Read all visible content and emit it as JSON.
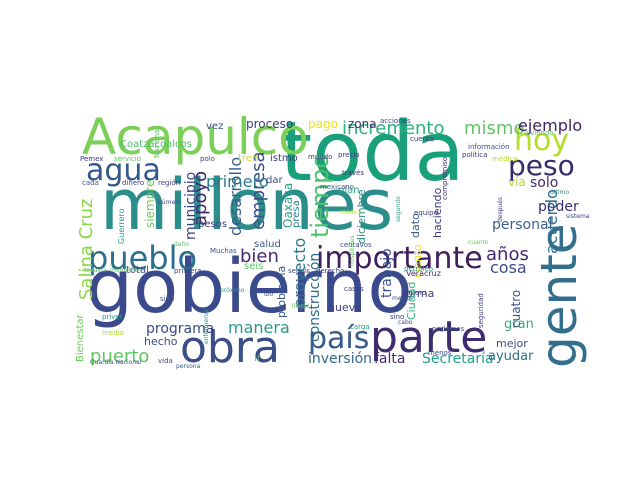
{
  "words": [
    {
      "t": "gobierno",
      "c": "#3b4a8c"
    },
    {
      "t": "millones",
      "c": "#2b8e8b"
    },
    {
      "t": "toda",
      "c": "#19a07a"
    },
    {
      "t": "Acapulco",
      "c": "#7ccf57"
    },
    {
      "t": "obra",
      "c": "#3c4e8a"
    },
    {
      "t": "parte",
      "c": "#3d2c6f"
    },
    {
      "t": "gente",
      "c": "#336f8c"
    },
    {
      "t": "importante",
      "c": "#3f1f5e"
    },
    {
      "t": "pueblo",
      "c": "#2c6e8e"
    },
    {
      "t": "país",
      "c": "#375a8c"
    },
    {
      "t": "agua",
      "c": "#35588c"
    },
    {
      "t": "hoy",
      "c": "#b4dd2b"
    },
    {
      "t": "peso",
      "c": "#3a2a6a"
    },
    {
      "t": "incremento",
      "c": "#2ab07f"
    },
    {
      "t": "mismo",
      "c": "#5fc562"
    },
    {
      "t": "ejemplo",
      "c": "#3e2466"
    },
    {
      "t": "tiempo",
      "c": "#4cc26c"
    },
    {
      "t": "desarrollo",
      "c": "#375c8d"
    },
    {
      "t": "apoyo",
      "c": "#432a6d"
    },
    {
      "t": "empresa",
      "c": "#3b508c"
    },
    {
      "t": "municipio",
      "c": "#3b3f85"
    },
    {
      "t": "primero",
      "c": "#2d7a8e"
    },
    {
      "t": "Salina Cruz",
      "c": "#8bd645"
    },
    {
      "t": "años",
      "c": "#3e2a6c"
    },
    {
      "t": "cosa",
      "c": "#3b4d8a"
    },
    {
      "t": "acuerdo",
      "c": "#2b6f8e"
    },
    {
      "t": "bien",
      "c": "#462a70"
    },
    {
      "t": "puerto",
      "c": "#5ec561"
    },
    {
      "t": "manera",
      "c": "#2a9a87"
    },
    {
      "t": "programa",
      "c": "#3a4a87"
    },
    {
      "t": "proyecto",
      "c": "#2c798e"
    },
    {
      "t": "trabajo",
      "c": "#39528b"
    },
    {
      "t": "construcción",
      "c": "#2f6b8d"
    },
    {
      "t": "Secretaría",
      "c": "#1fa38a"
    },
    {
      "t": "inversión",
      "c": "#31688d"
    },
    {
      "t": "falta",
      "c": "#452a6e"
    },
    {
      "t": "ayudar",
      "c": "#2d708e"
    },
    {
      "t": "gran",
      "c": "#3ba979"
    },
    {
      "t": "cuatro",
      "c": "#3a558b"
    },
    {
      "t": "personal",
      "c": "#3a5f8d"
    },
    {
      "t": "poder",
      "c": "#3b2f6f"
    },
    {
      "t": "solo",
      "c": "#432b6a"
    },
    {
      "t": "vía",
      "c": "#b3dd2c"
    },
    {
      "t": "proceso",
      "c": "#3c3c80"
    },
    {
      "t": "pago",
      "c": "#e8e419"
    },
    {
      "t": "zona",
      "c": "#46306f"
    },
    {
      "t": "vez",
      "c": "#3a4d88"
    },
    {
      "t": "Coatzacoalcos",
      "c": "#4cbf6c"
    },
    {
      "t": "tren",
      "c": "#cde11d"
    },
    {
      "t": "istmo",
      "c": "#3a3f82"
    },
    {
      "t": "dar",
      "c": "#3a4d89"
    },
    {
      "t": "Oaxaca",
      "c": "#2b9f86"
    },
    {
      "t": "presa",
      "c": "#2b7f8e"
    },
    {
      "t": "pesos",
      "c": "#3e3d82"
    },
    {
      "t": "siempre",
      "c": "#6ccd59"
    },
    {
      "t": "salud",
      "c": "#3b5789"
    },
    {
      "t": "seis",
      "c": "#5ac563"
    },
    {
      "t": "total",
      "c": "#3f4d89"
    },
    {
      "t": "Bienestar",
      "c": "#6ccd5a"
    },
    {
      "t": "hecho",
      "c": "#3a4c88"
    },
    {
      "t": "problema",
      "c": "#375a8b"
    },
    {
      "t": "nueva",
      "c": "#3c3f80"
    },
    {
      "t": "forma",
      "c": "#3d4587"
    },
    {
      "t": "Ciudad",
      "c": "#2fb47c"
    },
    {
      "t": "mejor",
      "c": "#3d4d89"
    },
    {
      "t": "dato",
      "c": "#3c5a8c"
    },
    {
      "t": "haciendo",
      "c": "#3c3e82"
    },
    {
      "t": "diciembre",
      "c": "#36918b"
    },
    {
      "t": "ciento",
      "c": "#e8e419"
    },
    {
      "t": "plan",
      "c": "#2ca47f"
    },
    {
      "t": "mundo",
      "c": "#3a3f81"
    },
    {
      "t": "mexicano",
      "c": "#3b5f8c"
    },
    {
      "t": "política",
      "c": "#3c3a81"
    },
    {
      "t": "Veracruz",
      "c": "#4a2c70"
    },
    {
      "t": "derecho",
      "c": "#3a3c82"
    },
    {
      "t": "seguir",
      "c": "#3a4a89"
    },
    {
      "t": "primera",
      "c": "#3a4a89"
    },
    {
      "t": "ir",
      "c": "#57c562"
    },
    {
      "t": "vida",
      "c": "#3e4586"
    },
    {
      "t": "Guardia Nacional",
      "c": "#3d5a8c"
    },
    {
      "t": "medio",
      "c": "#a9dc31"
    },
    {
      "t": "Muchas",
      "c": "#3b5089"
    },
    {
      "t": "casos",
      "c": "#3a3f81"
    },
    {
      "t": "carga",
      "c": "#2a9b86"
    },
    {
      "t": "acciones",
      "c": "#3a3c82"
    },
    {
      "t": "cuenta",
      "c": "#3a3c82"
    },
    {
      "t": "información",
      "c": "#3b4d8a"
    },
    {
      "t": "precio",
      "c": "#3a3c82"
    },
    {
      "t": "través",
      "c": "#3d2c6e"
    },
    {
      "t": "compromiso",
      "c": "#3c2c6d"
    },
    {
      "t": "vivienda",
      "c": "#5fc562"
    },
    {
      "t": "médica",
      "c": "#b5de2b"
    },
    {
      "t": "último",
      "c": "#2a8b8c"
    },
    {
      "t": "Pemex",
      "c": "#3c3e82"
    },
    {
      "t": "servicio",
      "c": "#5fc562"
    },
    {
      "t": "Nacional",
      "c": "#5fc562"
    },
    {
      "t": "polo",
      "c": "#3a4a89"
    },
    {
      "t": "cada",
      "c": "#3b5a8b"
    },
    {
      "t": "dinero",
      "c": "#3c3e82"
    },
    {
      "t": "región",
      "c": "#3c3e82"
    },
    {
      "t": "después",
      "c": "#3c3a81"
    },
    {
      "t": "sistema",
      "c": "#3a4a89"
    },
    {
      "t": "centavos",
      "c": "#3a4a89"
    },
    {
      "t": "cuanto",
      "c": "#5fc562"
    },
    {
      "t": "daño",
      "c": "#5fc562"
    },
    {
      "t": "médico",
      "c": "#b5de2b"
    },
    {
      "t": "segundo",
      "c": "#2a9b86"
    },
    {
      "t": "Guerrero",
      "c": "#2a9b86"
    },
    {
      "t": "todavía",
      "c": "#5fc562"
    },
    {
      "t": "momento",
      "c": "#5fc562"
    },
    {
      "t": "número",
      "c": "#3a4a89"
    },
    {
      "t": "persona",
      "c": "#3b5a8b"
    },
    {
      "t": "petróleo",
      "c": "#2a9b86"
    },
    {
      "t": "quiero",
      "c": "#3c3a81"
    },
    {
      "t": "sino",
      "c": "#3c3a81"
    },
    {
      "t": "seguridad",
      "c": "#3c3e82"
    },
    {
      "t": "hospitales",
      "c": "#5fc562"
    },
    {
      "t": "podemos",
      "c": "#3b5a8b"
    },
    {
      "t": "menos",
      "c": "#3a4a89"
    },
    {
      "t": "metros",
      "c": "#3a4a89"
    },
    {
      "t": "cabo",
      "c": "#3a4a89"
    },
    {
      "t": "dio",
      "c": "#3a4a89"
    },
    {
      "t": "enfermeros",
      "c": "#2a9b86"
    },
    {
      "t": "llegar",
      "c": "#5fc562"
    },
    {
      "t": "priver",
      "c": "#2a9b86"
    },
    {
      "t": "sido",
      "c": "#3a4a89"
    },
    {
      "t": "equipo",
      "c": "#3a3c82"
    },
    {
      "t": "próximo",
      "c": "#2a9b86"
    }
  ]
}
